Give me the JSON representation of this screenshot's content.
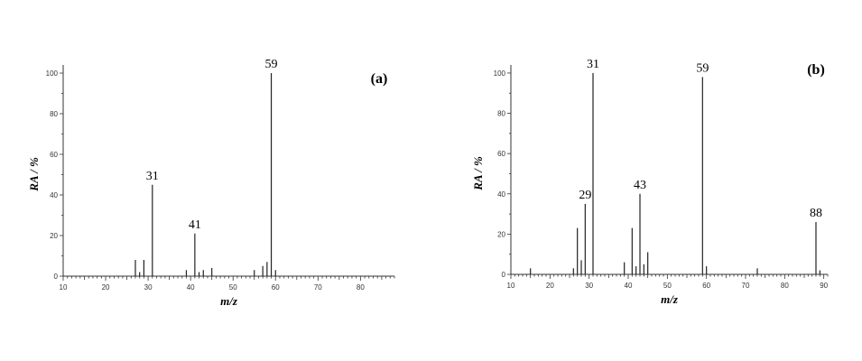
{
  "chart_data": [
    {
      "type": "bar",
      "panel_label": "(a)",
      "xlabel": "m/z",
      "ylabel": "RA / %",
      "xlim": [
        10,
        88
      ],
      "ylim": [
        0,
        104
      ],
      "xticks": [
        10,
        20,
        30,
        40,
        50,
        60,
        70,
        80
      ],
      "yticks": [
        0,
        20,
        40,
        60,
        80,
        100
      ],
      "grid": false,
      "x": [
        27,
        28,
        29,
        31,
        39,
        41,
        42,
        43,
        45,
        55,
        57,
        58,
        59,
        60
      ],
      "values": [
        8,
        2,
        8,
        45,
        3,
        21,
        2,
        3,
        4,
        3,
        5,
        7,
        100,
        3
      ],
      "annotations": [
        {
          "x": 31,
          "label": "31"
        },
        {
          "x": 41,
          "label": "41"
        },
        {
          "x": 59,
          "label": "59"
        }
      ]
    },
    {
      "type": "bar",
      "panel_label": "(b)",
      "xlabel": "m/z",
      "ylabel": "RA / %",
      "xlim": [
        10,
        91
      ],
      "ylim": [
        0,
        104
      ],
      "xticks": [
        10,
        20,
        30,
        40,
        50,
        60,
        70,
        80,
        90
      ],
      "yticks": [
        0,
        20,
        40,
        60,
        80,
        100
      ],
      "grid": false,
      "x": [
        15,
        26,
        27,
        28,
        29,
        31,
        39,
        41,
        42,
        43,
        44,
        45,
        59,
        60,
        73,
        88,
        89
      ],
      "values": [
        3,
        3,
        23,
        7,
        35,
        100,
        6,
        23,
        4,
        40,
        5,
        11,
        98,
        4,
        3,
        26,
        2
      ],
      "annotations": [
        {
          "x": 29,
          "label": "29"
        },
        {
          "x": 31,
          "label": "31"
        },
        {
          "x": 43,
          "label": "43"
        },
        {
          "x": 59,
          "label": "59"
        },
        {
          "x": 88,
          "label": "88"
        }
      ]
    }
  ]
}
